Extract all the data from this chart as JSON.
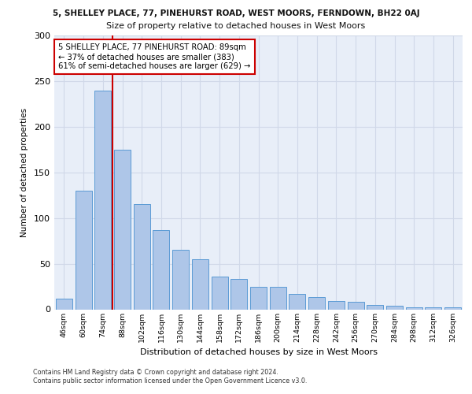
{
  "title_top": "5, SHELLEY PLACE, 77, PINEHURST ROAD, WEST MOORS, FERNDOWN, BH22 0AJ",
  "title_sub": "Size of property relative to detached houses in West Moors",
  "xlabel": "Distribution of detached houses by size in West Moors",
  "ylabel": "Number of detached properties",
  "footer_line1": "Contains HM Land Registry data © Crown copyright and database right 2024.",
  "footer_line2": "Contains public sector information licensed under the Open Government Licence v3.0.",
  "categories": [
    "46sqm",
    "60sqm",
    "74sqm",
    "88sqm",
    "102sqm",
    "116sqm",
    "130sqm",
    "144sqm",
    "158sqm",
    "172sqm",
    "186sqm",
    "200sqm",
    "214sqm",
    "228sqm",
    "242sqm",
    "256sqm",
    "270sqm",
    "284sqm",
    "298sqm",
    "312sqm",
    "326sqm"
  ],
  "values": [
    12,
    130,
    240,
    175,
    115,
    87,
    65,
    55,
    36,
    33,
    25,
    25,
    17,
    13,
    9,
    8,
    5,
    4,
    2,
    2,
    2
  ],
  "bar_color": "#aec6e8",
  "bar_edge_color": "#5b9bd5",
  "vline_x_index": 3,
  "vline_color": "#cc0000",
  "annotation_text": "5 SHELLEY PLACE, 77 PINEHURST ROAD: 89sqm\n← 37% of detached houses are smaller (383)\n61% of semi-detached houses are larger (629) →",
  "annotation_box_color": "#ffffff",
  "annotation_box_edge": "#cc0000",
  "ylim": [
    0,
    300
  ],
  "yticks": [
    0,
    50,
    100,
    150,
    200,
    250,
    300
  ],
  "grid_color": "#d0d8e8",
  "background_color": "#e8eef8"
}
